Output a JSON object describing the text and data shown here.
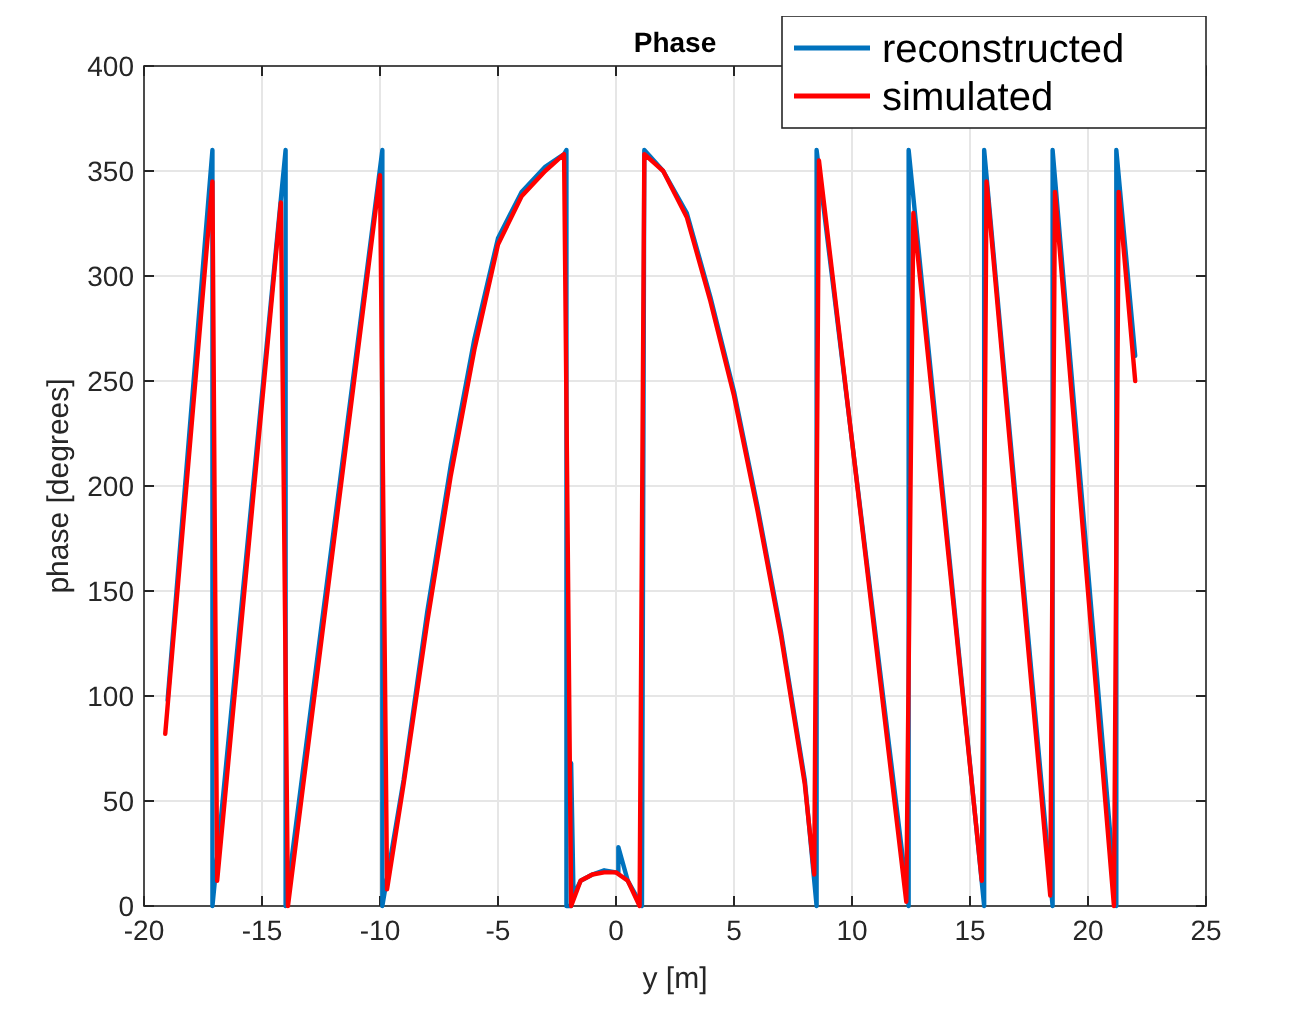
{
  "chart_data": {
    "type": "line",
    "title": "Phase",
    "xlabel": "y [m]",
    "ylabel": "phase [degrees]",
    "xlim": [
      -20,
      25
    ],
    "xticks": [
      -20,
      -15,
      -10,
      -5,
      0,
      5,
      10,
      15,
      20,
      25
    ],
    "ylim": [
      0,
      400
    ],
    "yticks": [
      0,
      50,
      100,
      150,
      200,
      250,
      300,
      350,
      400
    ],
    "grid": true,
    "legend": "top right",
    "line_style": "solid",
    "marker": "none",
    "series": [
      {
        "name": "reconstructed",
        "color": "#0072bd",
        "x": [
          -19,
          -17.1,
          -17.1,
          -14,
          -14,
          -9.9,
          -9.9,
          -9,
          -8,
          -7,
          -6,
          -5,
          -4,
          -3,
          -2.2,
          -2.1,
          -2.1,
          -1.9,
          -1.9,
          -1.8,
          -1.5,
          -1,
          -0.5,
          0,
          0.1,
          0.1,
          0.5,
          1,
          1.1,
          1.2,
          2,
          3,
          4,
          5,
          6,
          7,
          8,
          8.5,
          8.5,
          12.4,
          12.4,
          15.6,
          15.6,
          18.5,
          18.5,
          21.2,
          21.2,
          22
        ],
        "values": [
          98,
          360,
          0,
          360,
          0,
          360,
          0,
          60,
          140,
          210,
          270,
          318,
          340,
          352,
          358,
          360,
          0,
          0,
          68,
          5,
          12,
          15,
          17,
          16,
          16,
          28,
          12,
          2,
          0,
          360,
          350,
          330,
          290,
          245,
          190,
          130,
          60,
          0,
          360,
          0,
          360,
          0,
          360,
          0,
          360,
          0,
          360,
          262
        ]
      },
      {
        "name": "simulated",
        "color": "#ff0000",
        "x": [
          -19.1,
          -17.1,
          -16.9,
          -14.2,
          -13.9,
          -10,
          -9.7,
          -9,
          -8,
          -7,
          -6,
          -5,
          -4,
          -3,
          -2.2,
          -1.9,
          -1.5,
          -1,
          -0.5,
          0,
          0.5,
          1,
          1.2,
          2,
          3,
          4,
          5,
          6,
          7,
          8,
          8.4,
          8.6,
          12.3,
          12.6,
          15.5,
          15.7,
          18.4,
          18.6,
          21.1,
          21.3,
          22
        ],
        "values": [
          82,
          345,
          12,
          335,
          0,
          348,
          8,
          58,
          135,
          205,
          265,
          315,
          338,
          350,
          358,
          0,
          12,
          15,
          16,
          16,
          12,
          0,
          358,
          350,
          328,
          288,
          243,
          188,
          128,
          58,
          15,
          355,
          2,
          330,
          12,
          345,
          5,
          340,
          0,
          340,
          250
        ]
      }
    ]
  }
}
